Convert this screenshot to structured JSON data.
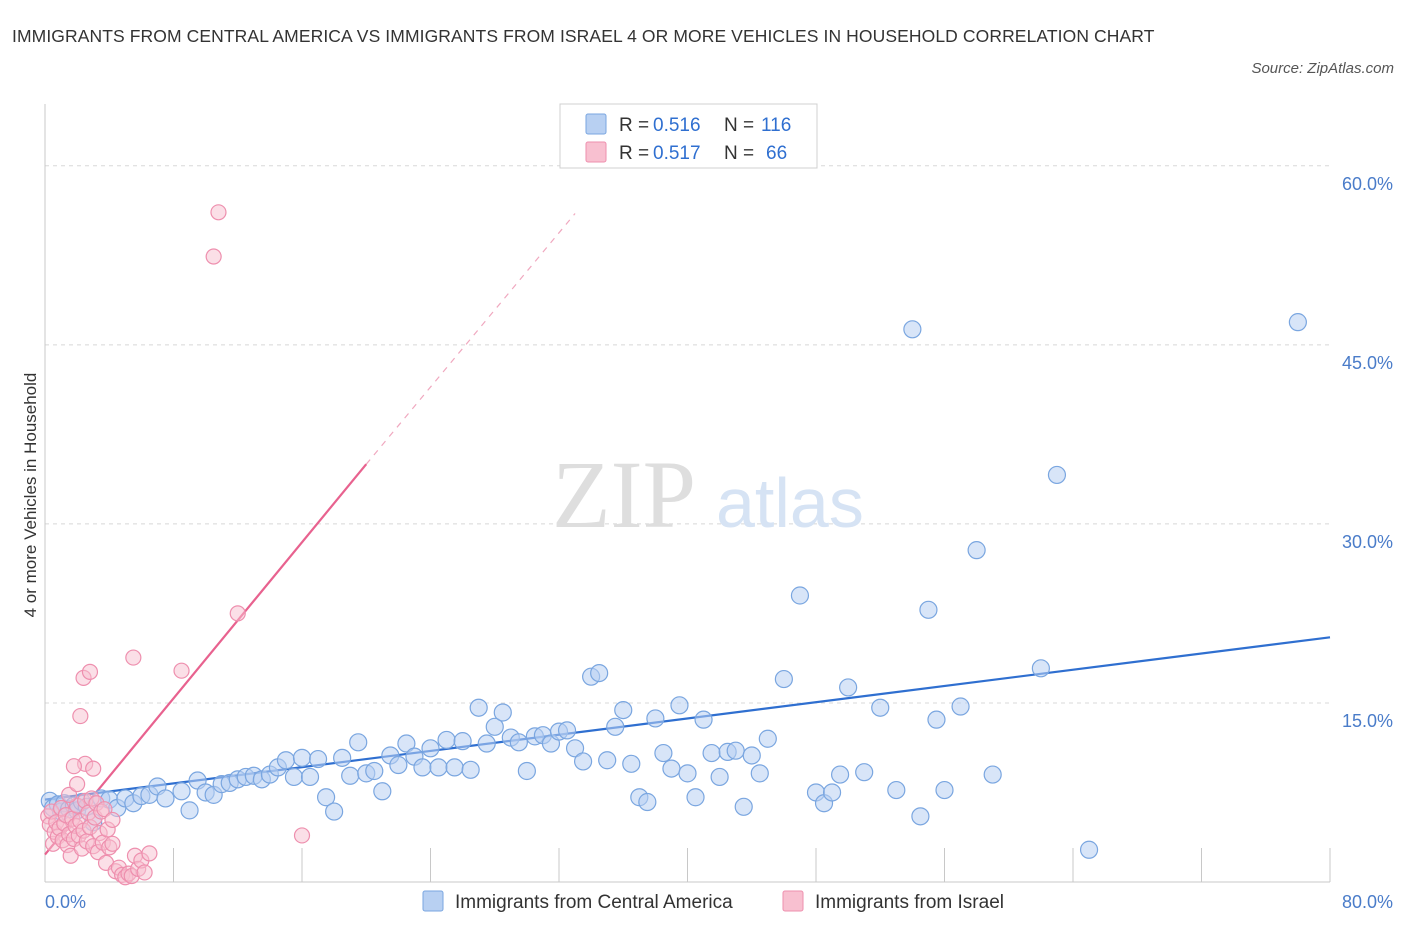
{
  "title": "IMMIGRANTS FROM CENTRAL AMERICA VS IMMIGRANTS FROM ISRAEL 4 OR MORE VEHICLES IN HOUSEHOLD CORRELATION CHART",
  "source": "Source: ZipAtlas.com",
  "watermark": {
    "zip": "ZIP",
    "atlas": "atlas"
  },
  "colors": {
    "blue_fill": "#b8d0f2",
    "blue_stroke": "#7aa6e0",
    "blue_line": "#2f6fd0",
    "pink_fill": "#f8c0d0",
    "pink_stroke": "#ee8fae",
    "pink_line": "#e8628f",
    "grid": "#d8d8d8",
    "tick_text": "#4a7cc9"
  },
  "legend": {
    "rows": [
      {
        "r_label": "R =",
        "r_value": "0.516",
        "n_label": "N =",
        "n_value": "116"
      },
      {
        "r_label": "R =",
        "r_value": "0.517",
        "n_label": "N =",
        "n_value": "66"
      }
    ]
  },
  "chart_data": {
    "type": "scatter",
    "title": "IMMIGRANTS FROM CENTRAL AMERICA VS IMMIGRANTS FROM ISRAEL 4 OR MORE VEHICLES IN HOUSEHOLD CORRELATION CHART",
    "xlabel": "",
    "ylabel": "4 or more Vehicles in Household",
    "xlim": [
      0,
      80
    ],
    "ylim": [
      0,
      64
    ],
    "x_tick_labels": [
      "0.0%",
      "80.0%"
    ],
    "y_ticks": [
      15,
      30,
      45,
      60
    ],
    "y_tick_labels": [
      "15.0%",
      "30.0%",
      "45.0%",
      "60.0%"
    ],
    "grid": true,
    "legend_position": "top-center",
    "series": [
      {
        "name": "Immigrants from Central America",
        "color": "#b8d0f2",
        "R": 0.516,
        "N": 116,
        "trend": {
          "x": [
            0,
            80
          ],
          "y": [
            6.9,
            20.5
          ]
        },
        "points": [
          [
            0.3,
            6.8
          ],
          [
            0.5,
            6.2
          ],
          [
            0.8,
            6.5
          ],
          [
            1.0,
            5.9
          ],
          [
            1.2,
            6.6
          ],
          [
            1.5,
            6.1
          ],
          [
            1.8,
            6.4
          ],
          [
            2.0,
            6.0
          ],
          [
            2.3,
            6.7
          ],
          [
            2.6,
            6.3
          ],
          [
            3.0,
            5.0
          ],
          [
            3.5,
            7.0
          ],
          [
            4.0,
            6.9
          ],
          [
            4.5,
            6.2
          ],
          [
            5.0,
            7.0
          ],
          [
            5.5,
            6.6
          ],
          [
            6.0,
            7.2
          ],
          [
            6.5,
            7.3
          ],
          [
            7.0,
            8.0
          ],
          [
            7.5,
            7.0
          ],
          [
            8.5,
            7.6
          ],
          [
            9.0,
            6.0
          ],
          [
            9.5,
            8.5
          ],
          [
            10.0,
            7.5
          ],
          [
            10.5,
            7.3
          ],
          [
            11.0,
            8.2
          ],
          [
            11.5,
            8.3
          ],
          [
            12.0,
            8.6
          ],
          [
            12.5,
            8.8
          ],
          [
            13.0,
            8.9
          ],
          [
            13.5,
            8.6
          ],
          [
            14.0,
            9.0
          ],
          [
            14.5,
            9.6
          ],
          [
            15.0,
            10.2
          ],
          [
            15.5,
            8.8
          ],
          [
            16.0,
            10.4
          ],
          [
            16.5,
            8.8
          ],
          [
            17.0,
            10.3
          ],
          [
            17.5,
            7.1
          ],
          [
            18.0,
            5.9
          ],
          [
            18.5,
            10.4
          ],
          [
            19.0,
            8.9
          ],
          [
            19.5,
            11.7
          ],
          [
            20.0,
            9.1
          ],
          [
            20.5,
            9.3
          ],
          [
            21.0,
            7.6
          ],
          [
            21.5,
            10.6
          ],
          [
            22.0,
            9.8
          ],
          [
            22.5,
            11.6
          ],
          [
            23.0,
            10.5
          ],
          [
            23.5,
            9.6
          ],
          [
            24.0,
            11.2
          ],
          [
            24.5,
            9.6
          ],
          [
            25.0,
            11.9
          ],
          [
            25.5,
            9.6
          ],
          [
            26.0,
            11.8
          ],
          [
            26.5,
            9.4
          ],
          [
            27.0,
            14.6
          ],
          [
            27.5,
            11.6
          ],
          [
            28.0,
            13.0
          ],
          [
            28.5,
            14.2
          ],
          [
            29.0,
            12.1
          ],
          [
            29.5,
            11.7
          ],
          [
            30.0,
            9.3
          ],
          [
            30.5,
            12.2
          ],
          [
            31.0,
            12.3
          ],
          [
            31.5,
            11.6
          ],
          [
            32.0,
            12.6
          ],
          [
            32.5,
            12.7
          ],
          [
            33.0,
            11.2
          ],
          [
            33.5,
            10.1
          ],
          [
            34.0,
            17.2
          ],
          [
            34.5,
            17.5
          ],
          [
            35.0,
            10.2
          ],
          [
            35.5,
            13.0
          ],
          [
            36.0,
            14.4
          ],
          [
            36.5,
            9.9
          ],
          [
            37.0,
            7.1
          ],
          [
            37.5,
            6.7
          ],
          [
            38.0,
            13.7
          ],
          [
            38.5,
            10.8
          ],
          [
            39.0,
            9.5
          ],
          [
            39.5,
            14.8
          ],
          [
            40.0,
            9.1
          ],
          [
            40.5,
            7.1
          ],
          [
            41.0,
            13.6
          ],
          [
            41.5,
            10.8
          ],
          [
            42.0,
            8.8
          ],
          [
            42.5,
            10.9
          ],
          [
            43.0,
            11.0
          ],
          [
            43.5,
            6.3
          ],
          [
            44.0,
            10.6
          ],
          [
            44.5,
            9.1
          ],
          [
            45.0,
            12.0
          ],
          [
            46.0,
            17.0
          ],
          [
            47.0,
            24.0
          ],
          [
            48.0,
            7.5
          ],
          [
            48.5,
            6.6
          ],
          [
            49.0,
            7.5
          ],
          [
            49.5,
            9.0
          ],
          [
            50.0,
            16.3
          ],
          [
            51.0,
            9.2
          ],
          [
            52.0,
            14.6
          ],
          [
            53.0,
            7.7
          ],
          [
            54.0,
            46.3
          ],
          [
            54.5,
            5.5
          ],
          [
            55.0,
            22.8
          ],
          [
            55.5,
            13.6
          ],
          [
            56.0,
            7.7
          ],
          [
            57.0,
            14.7
          ],
          [
            58.0,
            27.8
          ],
          [
            59.0,
            9.0
          ],
          [
            62.0,
            17.9
          ],
          [
            63.0,
            34.1
          ],
          [
            65.0,
            2.7
          ],
          [
            78.0,
            46.9
          ]
        ]
      },
      {
        "name": "Immigrants from Israel",
        "color": "#f8c0d0",
        "R": 0.517,
        "N": 66,
        "trend": {
          "x": [
            0,
            20
          ],
          "y": [
            2.3,
            35.0
          ]
        },
        "trend_dashed": {
          "x": [
            20,
            33
          ],
          "y": [
            35.0,
            56.0
          ]
        },
        "points": [
          [
            0.2,
            5.5
          ],
          [
            0.3,
            4.8
          ],
          [
            0.4,
            5.9
          ],
          [
            0.5,
            3.2
          ],
          [
            0.6,
            4.2
          ],
          [
            0.7,
            5.0
          ],
          [
            0.8,
            3.8
          ],
          [
            0.9,
            4.5
          ],
          [
            1.0,
            6.2
          ],
          [
            1.1,
            3.5
          ],
          [
            1.2,
            4.9
          ],
          [
            1.3,
            5.6
          ],
          [
            1.4,
            3.1
          ],
          [
            1.5,
            4.0
          ],
          [
            1.6,
            2.2
          ],
          [
            1.7,
            5.3
          ],
          [
            1.8,
            3.6
          ],
          [
            1.9,
            4.7
          ],
          [
            2.0,
            6.4
          ],
          [
            2.1,
            3.9
          ],
          [
            2.2,
            5.1
          ],
          [
            2.3,
            2.8
          ],
          [
            2.4,
            4.3
          ],
          [
            2.5,
            6.8
          ],
          [
            2.6,
            3.4
          ],
          [
            2.7,
            5.8
          ],
          [
            2.8,
            4.6
          ],
          [
            2.9,
            7.0
          ],
          [
            3.0,
            3.0
          ],
          [
            3.1,
            5.4
          ],
          [
            3.2,
            6.6
          ],
          [
            3.3,
            2.5
          ],
          [
            3.4,
            4.1
          ],
          [
            3.5,
            5.9
          ],
          [
            3.6,
            3.3
          ],
          [
            3.7,
            6.1
          ],
          [
            3.8,
            1.6
          ],
          [
            3.9,
            4.4
          ],
          [
            4.0,
            2.9
          ],
          [
            4.2,
            5.2
          ],
          [
            4.4,
            0.9
          ],
          [
            4.6,
            1.2
          ],
          [
            4.8,
            0.6
          ],
          [
            5.0,
            0.4
          ],
          [
            5.2,
            0.7
          ],
          [
            5.4,
            0.5
          ],
          [
            5.6,
            2.2
          ],
          [
            5.8,
            1.1
          ],
          [
            6.0,
            1.8
          ],
          [
            6.2,
            0.8
          ],
          [
            1.5,
            7.3
          ],
          [
            2.0,
            8.2
          ],
          [
            2.5,
            9.9
          ],
          [
            3.0,
            9.5
          ],
          [
            1.8,
            9.7
          ],
          [
            2.2,
            13.9
          ],
          [
            2.4,
            17.1
          ],
          [
            2.8,
            17.6
          ],
          [
            5.5,
            18.8
          ],
          [
            8.5,
            17.7
          ],
          [
            12.0,
            22.5
          ],
          [
            16.0,
            3.9
          ],
          [
            10.5,
            52.4
          ],
          [
            10.8,
            56.1
          ],
          [
            6.5,
            2.4
          ],
          [
            4.2,
            3.2
          ]
        ]
      }
    ]
  },
  "bottom_legend": [
    {
      "label": "Immigrants from Central America"
    },
    {
      "label": "Immigrants from Israel"
    }
  ]
}
